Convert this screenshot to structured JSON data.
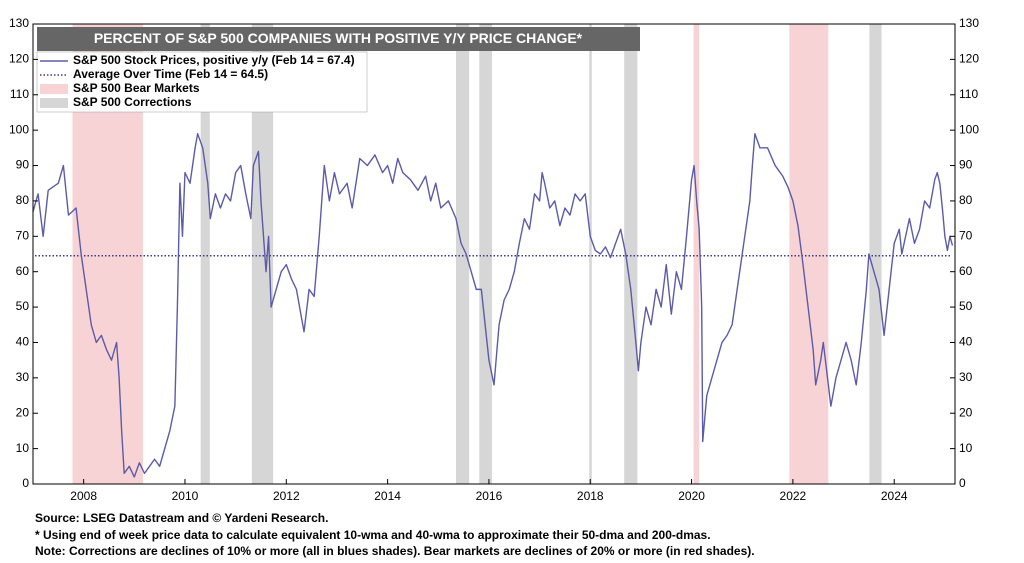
{
  "chart_data": {
    "type": "line",
    "title": "PERCENT OF S&P 500 COMPANIES WITH POSITIVE Y/Y PRICE CHANGE*",
    "xlim": [
      2007.0,
      2025.2
    ],
    "xticks": [
      2008,
      2010,
      2012,
      2014,
      2016,
      2018,
      2020,
      2022,
      2024
    ],
    "ylim": [
      0,
      130
    ],
    "yticks": [
      0,
      10,
      20,
      30,
      40,
      50,
      60,
      70,
      80,
      90,
      100,
      110,
      120,
      130
    ],
    "y2lim": [
      0,
      130
    ],
    "y2ticks": [
      0,
      10,
      20,
      30,
      40,
      50,
      60,
      70,
      80,
      90,
      100,
      110,
      120,
      130
    ],
    "grid": false,
    "legend": "top-left",
    "series": [
      {
        "name": "S&P 500 Stock Prices, positive y/y (Feb 14 = 67.4)",
        "color": "#5b5ba8",
        "x": [
          2007.0,
          2007.1,
          2007.2,
          2007.3,
          2007.5,
          2007.6,
          2007.7,
          2007.85,
          2007.95,
          2008.05,
          2008.15,
          2008.25,
          2008.35,
          2008.45,
          2008.55,
          2008.65,
          2008.7,
          2008.75,
          2008.8,
          2008.9,
          2009.0,
          2009.1,
          2009.2,
          2009.3,
          2009.4,
          2009.5,
          2009.6,
          2009.7,
          2009.8,
          2009.85,
          2009.9,
          2009.95,
          2010.0,
          2010.1,
          2010.2,
          2010.25,
          2010.35,
          2010.45,
          2010.5,
          2010.6,
          2010.7,
          2010.8,
          2010.9,
          2011.0,
          2011.1,
          2011.2,
          2011.3,
          2011.35,
          2011.45,
          2011.5,
          2011.6,
          2011.65,
          2011.7,
          2011.8,
          2011.9,
          2012.0,
          2012.1,
          2012.2,
          2012.3,
          2012.35,
          2012.45,
          2012.55,
          2012.65,
          2012.75,
          2012.85,
          2012.95,
          2013.05,
          2013.2,
          2013.3,
          2013.45,
          2013.6,
          2013.75,
          2013.9,
          2014.0,
          2014.1,
          2014.2,
          2014.3,
          2014.45,
          2014.6,
          2014.75,
          2014.85,
          2014.95,
          2015.05,
          2015.2,
          2015.35,
          2015.45,
          2015.55,
          2015.65,
          2015.75,
          2015.85,
          2016.0,
          2016.1,
          2016.2,
          2016.3,
          2016.4,
          2016.5,
          2016.6,
          2016.7,
          2016.8,
          2016.9,
          2017.0,
          2017.05,
          2017.1,
          2017.2,
          2017.3,
          2017.4,
          2017.5,
          2017.6,
          2017.7,
          2017.8,
          2017.9,
          2018.0,
          2018.1,
          2018.2,
          2018.3,
          2018.4,
          2018.5,
          2018.6,
          2018.7,
          2018.8,
          2018.9,
          2018.95,
          2019.0,
          2019.1,
          2019.2,
          2019.3,
          2019.4,
          2019.5,
          2019.6,
          2019.7,
          2019.8,
          2019.9,
          2020.0,
          2020.05,
          2020.1,
          2020.15,
          2020.2,
          2020.22,
          2020.3,
          2020.4,
          2020.5,
          2020.6,
          2020.7,
          2020.8,
          2020.9,
          2021.0,
          2021.05,
          2021.1,
          2021.15,
          2021.2,
          2021.25,
          2021.35,
          2021.5,
          2021.65,
          2021.8,
          2021.9,
          2022.0,
          2022.1,
          2022.2,
          2022.3,
          2022.4,
          2022.45,
          2022.55,
          2022.6,
          2022.7,
          2022.75,
          2022.85,
          2022.95,
          2023.05,
          2023.15,
          2023.25,
          2023.35,
          2023.45,
          2023.5,
          2023.6,
          2023.7,
          2023.8,
          2023.9,
          2024.0,
          2024.1,
          2024.15,
          2024.3,
          2024.4,
          2024.5,
          2024.6,
          2024.7,
          2024.8,
          2024.85,
          2024.9,
          2024.95,
          2025.0,
          2025.05,
          2025.1,
          2025.15
        ],
        "values": [
          77,
          82,
          70,
          83,
          85,
          90,
          76,
          78,
          65,
          55,
          45,
          40,
          42,
          38,
          35,
          40,
          30,
          15,
          3,
          5,
          2,
          6,
          3,
          5,
          7,
          5,
          10,
          15,
          22,
          50,
          85,
          70,
          88,
          85,
          95,
          99,
          95,
          85,
          75,
          82,
          78,
          82,
          80,
          88,
          90,
          82,
          75,
          90,
          94,
          80,
          60,
          70,
          50,
          55,
          60,
          62,
          58,
          55,
          47,
          43,
          55,
          53,
          70,
          90,
          80,
          88,
          82,
          85,
          78,
          92,
          90,
          93,
          88,
          90,
          85,
          92,
          88,
          86,
          83,
          87,
          80,
          85,
          78,
          80,
          75,
          68,
          65,
          60,
          55,
          55,
          35,
          28,
          45,
          52,
          55,
          60,
          68,
          75,
          72,
          82,
          80,
          88,
          85,
          78,
          80,
          73,
          78,
          76,
          82,
          80,
          82,
          70,
          66,
          65,
          67,
          64,
          68,
          72,
          65,
          55,
          40,
          32,
          40,
          50,
          45,
          55,
          50,
          62,
          48,
          60,
          55,
          70,
          86,
          90,
          80,
          72,
          50,
          12,
          25,
          30,
          35,
          40,
          42,
          45,
          55,
          65,
          70,
          75,
          80,
          90,
          99,
          95,
          95,
          90,
          87,
          84,
          80,
          73,
          62,
          50,
          38,
          28,
          35,
          40,
          28,
          22,
          30,
          35,
          40,
          35,
          28,
          40,
          55,
          65,
          60,
          55,
          42,
          55,
          68,
          72,
          65,
          75,
          68,
          72,
          80,
          78,
          86,
          88,
          85,
          78,
          70,
          66,
          70,
          67.4
        ]
      }
    ],
    "reference_lines": [
      {
        "name": "Average Over Time (Feb 14 = 64.5)",
        "value": 64.5,
        "color": "#3a3a8c"
      }
    ],
    "bands": [
      {
        "name": "S&P 500 Bear Markets",
        "color": "#f8d3d6",
        "ranges": [
          [
            2007.78,
            2009.17
          ],
          [
            2020.04,
            2020.15
          ],
          [
            2021.93,
            2022.7
          ]
        ]
      },
      {
        "name": "S&P 500 Corrections",
        "color": "#d6d6d6",
        "ranges": [
          [
            2010.31,
            2010.49
          ],
          [
            2011.32,
            2011.74
          ],
          [
            2015.35,
            2015.61
          ],
          [
            2015.81,
            2016.06
          ],
          [
            2017.98,
            2018.03
          ],
          [
            2018.67,
            2018.93
          ],
          [
            2023.51,
            2023.75
          ]
        ]
      }
    ],
    "notes": [
      "Source: LSEG Datastream and © Yardeni Research.",
      "* Using end of week price data to calculate equivalent 10-wma and 40-wma to approximate their 50-dma and 200-dmas.",
      "Note: Corrections are declines of 10% or more (all in blues shades). Bear markets are declines of 20% or more (in red shades)."
    ]
  }
}
